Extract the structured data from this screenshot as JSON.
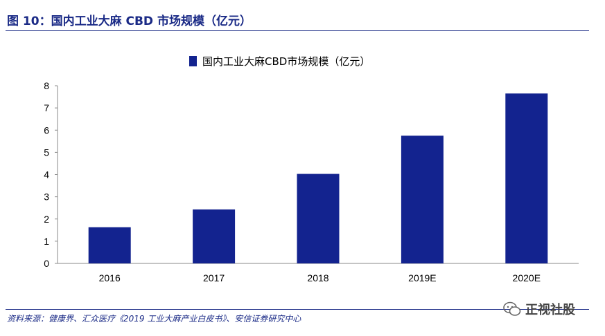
{
  "figure": {
    "title": "图 10：国内工业大麻 CBD 市场规模（亿元）",
    "source": "资料来源：健康界、汇众医疗《2019 工业大麻产业白皮书》、安信证券研究中心",
    "watermark": "正视社股"
  },
  "colors": {
    "bar": "#13238f",
    "accent": "#1a2a86"
  },
  "chart_data": {
    "type": "bar",
    "categories": [
      "2016",
      "2017",
      "2018",
      "2019E",
      "2020E"
    ],
    "series": [
      {
        "name": "国内工业大麻CBD市场规模（亿元）",
        "values": [
          1.63,
          2.43,
          4.03,
          5.75,
          7.65
        ]
      }
    ],
    "ylim": [
      0,
      8
    ],
    "yticks": [
      "0",
      "1",
      "2",
      "3",
      "4",
      "5",
      "6",
      "7",
      "8"
    ],
    "grid": false,
    "legend": "top-center"
  }
}
